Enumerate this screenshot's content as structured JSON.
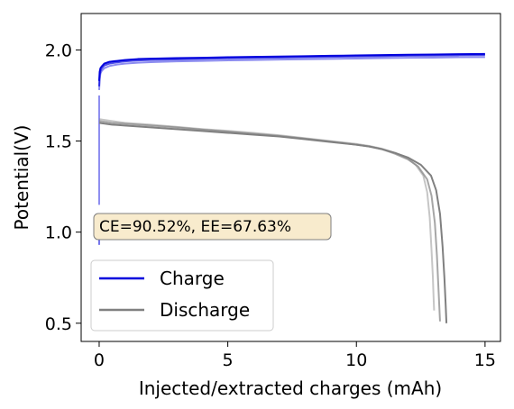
{
  "chart_data": {
    "type": "line",
    "xlabel": "Injected/extracted charges (mAh)",
    "ylabel": "Potential(V)",
    "xlim": [
      -0.7,
      15.6
    ],
    "ylim": [
      0.4,
      2.2
    ],
    "x_ticks": [
      0,
      5,
      10,
      15
    ],
    "x_tick_labels": [
      "0",
      "5",
      "10",
      "15"
    ],
    "y_ticks": [
      0.5,
      1.0,
      1.5,
      2.0
    ],
    "y_tick_labels": [
      "0.5",
      "1.0",
      "1.5",
      "2.0"
    ],
    "grid": false,
    "legend": {
      "placement": "lower-left",
      "entries": [
        {
          "label": "Charge",
          "color": "#0000dd"
        },
        {
          "label": "Discharge",
          "color": "#808080"
        }
      ]
    },
    "annotation": "CE=90.52%, EE=67.63%",
    "series": [
      {
        "name": "Charge",
        "color": "#0000dd",
        "cycles": [
          {
            "opacity": 1.0,
            "x": [
              0,
              0.02,
              0.05,
              0.1,
              0.2,
              0.4,
              0.7,
              1.0,
              1.5,
              2,
              3,
              4,
              5,
              6,
              7,
              8,
              9,
              10,
              11,
              12,
              13,
              14,
              15
            ],
            "y": [
              1.83,
              1.88,
              1.9,
              1.91,
              1.925,
              1.935,
              1.94,
              1.945,
              1.95,
              1.952,
              1.955,
              1.957,
              1.96,
              1.962,
              1.964,
              1.966,
              1.968,
              1.97,
              1.972,
              1.974,
              1.975,
              1.977,
              1.978
            ]
          },
          {
            "opacity": 0.7,
            "x": [
              0,
              0.02,
              0.05,
              0.1,
              0.2,
              0.4,
              0.7,
              1.0,
              1.5,
              2,
              3,
              4,
              5,
              6,
              7,
              8,
              9,
              10,
              11,
              12,
              13,
              14,
              15
            ],
            "y": [
              1.8,
              1.86,
              1.885,
              1.9,
              1.915,
              1.925,
              1.932,
              1.937,
              1.942,
              1.945,
              1.948,
              1.951,
              1.954,
              1.956,
              1.958,
              1.96,
              1.962,
              1.964,
              1.966,
              1.968,
              1.969,
              1.971,
              1.972
            ]
          },
          {
            "opacity": 0.45,
            "x": [
              0,
              0.02,
              0.05,
              0.1,
              0.2,
              0.4,
              0.7,
              1.0,
              1.5,
              2,
              3,
              4,
              5,
              6,
              7,
              8,
              9,
              10,
              11,
              12,
              13,
              14,
              15
            ],
            "y": [
              1.78,
              1.84,
              1.87,
              1.885,
              1.9,
              1.912,
              1.92,
              1.925,
              1.93,
              1.933,
              1.937,
              1.94,
              1.943,
              1.945,
              1.947,
              1.949,
              1.951,
              1.953,
              1.955,
              1.957,
              1.958,
              1.96,
              1.961
            ]
          },
          {
            "opacity": 0.45,
            "x": [
              0,
              0,
              0,
              0
            ],
            "y": [
              1.15,
              1.35,
              1.55,
              1.75
            ]
          },
          {
            "opacity": 0.55,
            "x": [
              0,
              0,
              0
            ],
            "y": [
              0.93,
              1.0,
              1.1
            ]
          }
        ]
      },
      {
        "name": "Discharge",
        "color": "#808080",
        "cycles": [
          {
            "opacity": 1.0,
            "x": [
              0,
              0.5,
              1,
              2,
              3,
              4,
              5,
              6,
              7,
              8,
              9,
              10,
              10.5,
              11,
              11.5,
              12,
              12.5,
              12.9,
              13.1,
              13.25,
              13.35,
              13.42,
              13.47,
              13.5
            ],
            "y": [
              1.6,
              1.59,
              1.585,
              1.575,
              1.565,
              1.555,
              1.545,
              1.535,
              1.525,
              1.51,
              1.495,
              1.48,
              1.47,
              1.455,
              1.435,
              1.41,
              1.37,
              1.31,
              1.23,
              1.1,
              0.92,
              0.75,
              0.6,
              0.5
            ]
          },
          {
            "opacity": 0.7,
            "x": [
              0,
              0.5,
              1,
              2,
              3,
              4,
              5,
              6,
              7,
              8,
              9,
              10,
              10.5,
              11,
              11.5,
              12,
              12.4,
              12.75,
              12.92,
              13.05,
              13.13,
              13.18,
              13.22,
              13.25
            ],
            "y": [
              1.61,
              1.6,
              1.595,
              1.585,
              1.575,
              1.563,
              1.552,
              1.54,
              1.528,
              1.513,
              1.497,
              1.48,
              1.47,
              1.455,
              1.43,
              1.4,
              1.36,
              1.29,
              1.2,
              1.05,
              0.87,
              0.72,
              0.6,
              0.51
            ]
          },
          {
            "opacity": 0.45,
            "x": [
              0,
              0.5,
              1,
              2,
              3,
              4,
              5,
              6,
              7,
              8,
              9,
              10,
              10.5,
              11,
              11.5,
              12,
              12.3,
              12.6,
              12.75,
              12.85,
              12.92,
              12.97,
              13.0,
              13.02
            ],
            "y": [
              1.62,
              1.61,
              1.6,
              1.59,
              1.578,
              1.566,
              1.556,
              1.545,
              1.532,
              1.516,
              1.5,
              1.484,
              1.473,
              1.458,
              1.435,
              1.405,
              1.37,
              1.31,
              1.22,
              1.08,
              0.9,
              0.76,
              0.64,
              0.57
            ]
          }
        ]
      }
    ]
  }
}
